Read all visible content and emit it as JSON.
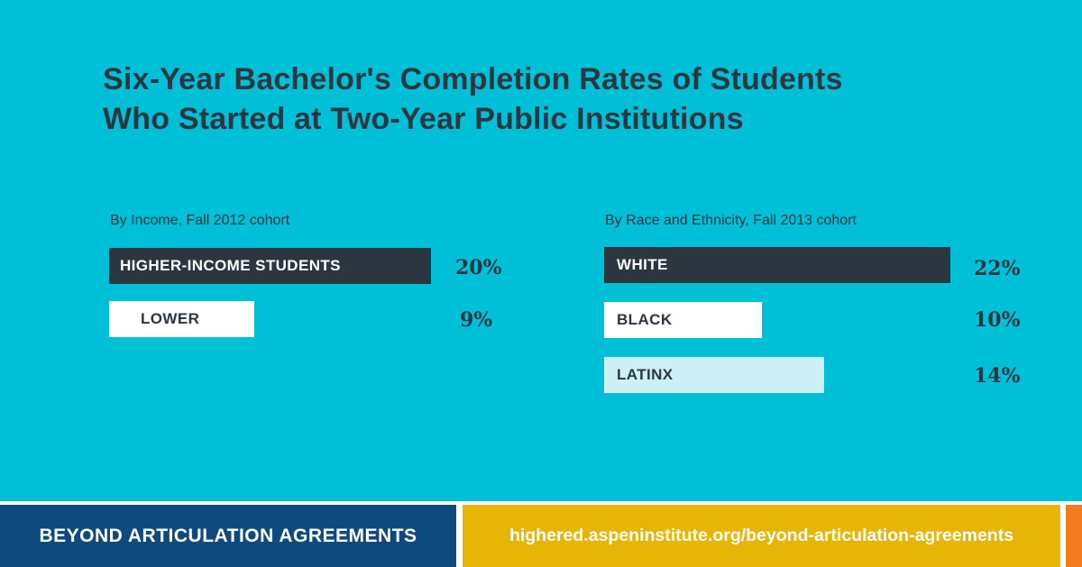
{
  "chart_data": [
    {
      "type": "bar",
      "orientation": "horizontal",
      "title": "Six-Year Bachelor's Completion Rates of Students Who Started at Two-Year Public Institutions",
      "subtitle": "By Income, Fall 2012 cohort",
      "categories": [
        "HIGHER-INCOME STUDENTS",
        "LOWER"
      ],
      "values": [
        20,
        9
      ],
      "value_labels": [
        "20%",
        "9%"
      ],
      "unit": "%",
      "colors": [
        "#2b3640",
        "#ffffff"
      ],
      "xlim": [
        0,
        20
      ]
    },
    {
      "type": "bar",
      "orientation": "horizontal",
      "subtitle": "By Race and Ethnicity, Fall 2013 cohort",
      "categories": [
        "WHITE",
        "BLACK",
        "LATINX"
      ],
      "values": [
        22,
        10,
        14
      ],
      "value_labels": [
        "22%",
        "10%",
        "14%"
      ],
      "unit": "%",
      "colors": [
        "#2b3640",
        "#ffffff",
        "#cdeff6"
      ],
      "xlim": [
        0,
        22
      ]
    }
  ],
  "title_lines": [
    "Six-Year Bachelor's Completion Rates of Students",
    "Who Started at Two-Year Public Institutions"
  ],
  "footer": {
    "left_text": "BEYOND ARTICULATION AGREEMENTS",
    "url_text": "highered.aspeninstitute.org/beyond-articulation-agreements"
  },
  "colors": {
    "background": "#00c0d8",
    "text_dark": "#2b3640",
    "footer_blue": "#0f4a7e",
    "footer_gold": "#e6b506",
    "footer_orange": "#f47a20"
  }
}
